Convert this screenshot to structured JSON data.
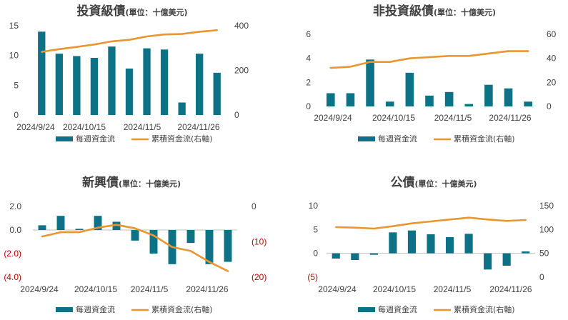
{
  "colors": {
    "bar": "#0d7285",
    "line": "#e8962f",
    "text": "#404040",
    "negative": "#c00000",
    "axis": "#bfbfbf"
  },
  "legend": {
    "bar_label": "每週資金流",
    "line_label": "累積資金流(右軸)"
  },
  "chart_data": [
    {
      "type": "bar+line",
      "title": "投資級債",
      "unit": "(單位：十億美元)",
      "xtick_labels": [
        "2024/9/24",
        "2024/10/15",
        "2024/11/5",
        "2024/11/26"
      ],
      "categories": [
        "2024/9/24",
        "2024/10/1",
        "2024/10/8",
        "2024/10/15",
        "2024/10/22",
        "2024/10/29",
        "2024/11/5",
        "2024/11/12",
        "2024/11/19",
        "2024/11/26",
        "2024/12/3"
      ],
      "left_axis": {
        "ylim": [
          0,
          15
        ],
        "ticks": [
          0,
          5,
          10,
          15
        ],
        "tick_labels": [
          "0",
          "5",
          "10",
          "15"
        ]
      },
      "right_axis": {
        "ylim": [
          0,
          400
        ],
        "ticks": [
          0,
          200,
          400
        ],
        "tick_labels": [
          "0",
          "200",
          "400"
        ]
      },
      "series": [
        {
          "name": "每週資金流",
          "type": "bar",
          "axis": "left",
          "values": [
            14.0,
            10.3,
            9.9,
            9.6,
            11.5,
            7.8,
            11.2,
            11.0,
            2.1,
            10.3,
            7.1
          ]
        },
        {
          "name": "累積資金流(右軸)",
          "type": "line",
          "axis": "right",
          "values": [
            283,
            295,
            305,
            316,
            330,
            337,
            352,
            361,
            363,
            373,
            380
          ]
        }
      ]
    },
    {
      "type": "bar+line",
      "title": "非投資級債",
      "unit": "(單位：十億美元)",
      "xtick_labels": [
        "2024/9/24",
        "2024/10/15",
        "2024/11/5",
        "2024/11/26"
      ],
      "categories": [
        "2024/9/24",
        "2024/10/1",
        "2024/10/8",
        "2024/10/15",
        "2024/10/22",
        "2024/10/29",
        "2024/11/5",
        "2024/11/12",
        "2024/11/19",
        "2024/11/26",
        "2024/12/3"
      ],
      "left_axis": {
        "ylim": [
          0,
          6
        ],
        "ticks": [
          0,
          2,
          4,
          6
        ],
        "tick_labels": [
          "0",
          "2",
          "4",
          "6"
        ]
      },
      "right_axis": {
        "ylim": [
          0,
          60
        ],
        "ticks": [
          0,
          20,
          40,
          60
        ],
        "tick_labels": [
          "0",
          "20",
          "40",
          "60"
        ]
      },
      "series": [
        {
          "name": "每週資金流",
          "type": "bar",
          "axis": "left",
          "values": [
            1.1,
            1.1,
            3.9,
            0.4,
            2.8,
            0.9,
            1.2,
            0.2,
            1.8,
            1.5,
            0.4
          ]
        },
        {
          "name": "累積資金流(右軸)",
          "type": "line",
          "axis": "right",
          "values": [
            32,
            33,
            37,
            37,
            40,
            41,
            42,
            42,
            44,
            46,
            46
          ]
        }
      ]
    },
    {
      "type": "bar+line",
      "title": "新興債",
      "unit": "(單位：十億美元)",
      "xtick_labels": [
        "2024/9/24",
        "2024/10/15",
        "2024/11/5",
        "2024/11/26"
      ],
      "categories": [
        "2024/9/24",
        "2024/10/1",
        "2024/10/8",
        "2024/10/15",
        "2024/10/22",
        "2024/10/29",
        "2024/11/5",
        "2024/11/12",
        "2024/11/19",
        "2024/11/26",
        "2024/12/3"
      ],
      "left_axis": {
        "ylim": [
          -4,
          2
        ],
        "ticks": [
          2,
          0,
          -2,
          -4
        ],
        "tick_labels": [
          "2.0",
          "0.0",
          "(2.0)",
          "(4.0)"
        ]
      },
      "right_axis": {
        "ylim": [
          -20,
          0
        ],
        "ticks": [
          0,
          -10,
          -20
        ],
        "tick_labels": [
          "0",
          "(10)",
          "(20)"
        ]
      },
      "series": [
        {
          "name": "每週資金流",
          "type": "bar",
          "axis": "left",
          "values": [
            0.4,
            1.2,
            0.1,
            1.2,
            0.7,
            -0.9,
            -2.0,
            -2.9,
            -1.1,
            -2.9,
            -2.7
          ]
        },
        {
          "name": "累積資金流(右軸)",
          "type": "line",
          "axis": "right",
          "values": [
            -8.5,
            -7.3,
            -7.3,
            -6.0,
            -5.2,
            -6.2,
            -8.2,
            -11.5,
            -12.6,
            -15.7,
            -18.3
          ]
        }
      ]
    },
    {
      "type": "bar+line",
      "title": "公債",
      "unit": "(單位：十億美元)",
      "xtick_labels": [
        "2024/9/24",
        "2024/10/15",
        "2024/11/5",
        "2024/11/26"
      ],
      "categories": [
        "2024/9/24",
        "2024/10/1",
        "2024/10/8",
        "2024/10/15",
        "2024/10/22",
        "2024/10/29",
        "2024/11/5",
        "2024/11/12",
        "2024/11/19",
        "2024/11/26",
        "2024/12/3"
      ],
      "left_axis": {
        "ylim": [
          -5,
          10
        ],
        "ticks": [
          10,
          5,
          0,
          -5
        ],
        "tick_labels": [
          "10",
          "5",
          "0",
          "(5)"
        ]
      },
      "right_axis": {
        "ylim": [
          0,
          150
        ],
        "ticks": [
          0,
          50,
          100,
          150
        ],
        "tick_labels": [
          "0",
          "50",
          "100",
          "150"
        ]
      },
      "series": [
        {
          "name": "每週資金流",
          "type": "bar",
          "axis": "left",
          "values": [
            -1.1,
            -1.4,
            -0.3,
            4.4,
            4.8,
            4.0,
            3.4,
            4.1,
            -3.4,
            -2.6,
            0.4
          ]
        },
        {
          "name": "累積資金流(右軸)",
          "type": "line",
          "axis": "right",
          "values": [
            105,
            104,
            102,
            107,
            113,
            117,
            121,
            125,
            121,
            118,
            120
          ]
        }
      ]
    }
  ]
}
